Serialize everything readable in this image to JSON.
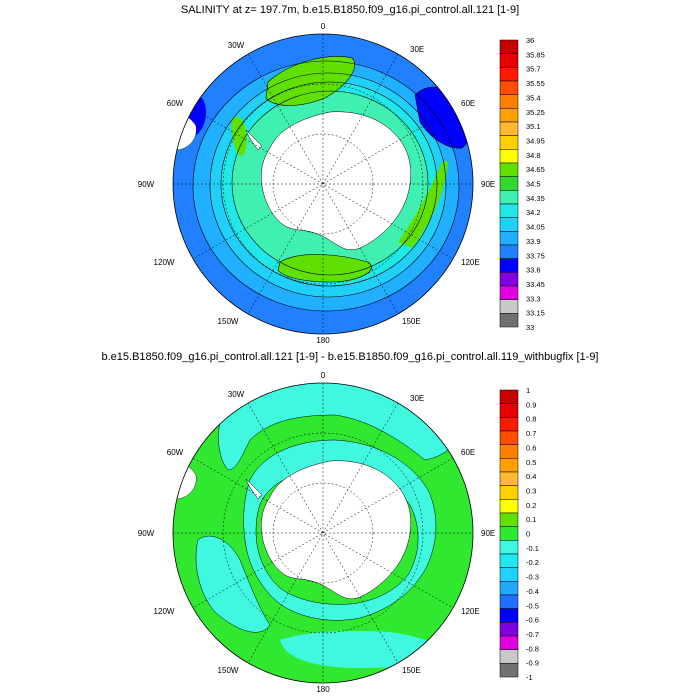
{
  "panels": [
    {
      "title": "SALINITY at z= 197.7m, b.e15.B1850.f09_g16.pi_control.all.121 [1-9]",
      "longitude_labels": [
        "0",
        "30E",
        "60E",
        "90E",
        "120E",
        "150E",
        "180",
        "150W",
        "120W",
        "90W",
        "60W",
        "30W"
      ],
      "colorbar": {
        "labels": [
          "36",
          "35.85",
          "35.7",
          "35.55",
          "35.4",
          "35.25",
          "35.1",
          "34.95",
          "34.8",
          "34.65",
          "34.5",
          "34.35",
          "34.2",
          "34.05",
          "33.9",
          "33.75",
          "33.6",
          "33.45",
          "33.3",
          "33.15",
          "33"
        ],
        "colors_top_to_bottom": [
          "#c80000",
          "#e60000",
          "#ff1a00",
          "#ff4d00",
          "#ff8000",
          "#ffa000",
          "#ffb830",
          "#ffd000",
          "#ffff00",
          "#60e000",
          "#30d830",
          "#40f0b0",
          "#20e8e8",
          "#20d0f8",
          "#20b0ff",
          "#2080ff",
          "#0000ff",
          "#8000e0",
          "#e000e0",
          "#c8c8c8",
          "#707070"
        ]
      }
    },
    {
      "title": "b.e15.B1850.f09_g16.pi_control.all.121 [1-9] - b.e15.B1850.f09_g16.pi_control.all.119_withbugfix [1-9]",
      "longitude_labels": [
        "0",
        "30E",
        "60E",
        "90E",
        "120E",
        "150E",
        "180",
        "150W",
        "120W",
        "90W",
        "60W",
        "30W"
      ],
      "colorbar": {
        "labels": [
          "1",
          "0.9",
          "0.8",
          "0.7",
          "0.6",
          "0.5",
          "0.4",
          "0.3",
          "0.2",
          "0.1",
          "0",
          "-0.1",
          "-0.2",
          "-0.3",
          "-0.4",
          "-0.5",
          "-0.6",
          "-0.7",
          "-0.8",
          "-0.9",
          "-1"
        ],
        "colors_top_to_bottom": [
          "#c80000",
          "#e60000",
          "#ff1a00",
          "#ff4d00",
          "#ff8000",
          "#ffa000",
          "#ffb830",
          "#ffd000",
          "#ffff00",
          "#60e000",
          "#30e830",
          "#40f8e0",
          "#20e8f0",
          "#20d0ff",
          "#20a8ff",
          "#2070ff",
          "#0000ff",
          "#8000e0",
          "#e000e0",
          "#c8c8c8",
          "#707070"
        ]
      }
    }
  ]
}
